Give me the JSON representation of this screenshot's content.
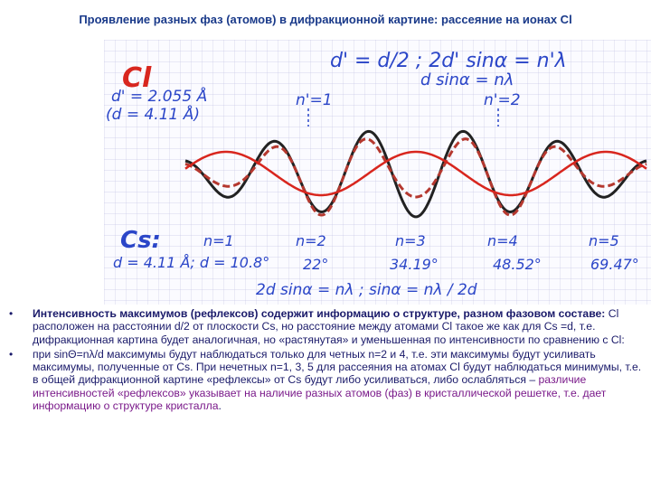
{
  "title": "Проявление разных фаз (атомов) в дифракционной картине: рассеяние на ионах Cl",
  "figure": {
    "formula_top1": "d' = d/2 ; 2d' sinα = n'λ",
    "formula_top2": "d sinα = nλ",
    "cl_symbol": "Cl",
    "cl_d_prime": "d' = 2.055 Å",
    "cl_d": "(d = 4.11 Å)",
    "n1_top": "n'=1",
    "n2_top": "n'=2",
    "cs_symbol": "Cs:",
    "cs_params": "d = 4.11 Å; d = 10.8°",
    "n_labels": [
      "n=1",
      "n=2",
      "n=3",
      "n=4",
      "n=5"
    ],
    "angles": [
      "22°",
      "34.19°",
      "48.52°",
      "69.47°"
    ],
    "formula_bottom": "2d sinα = nλ ; sinα = nλ / 2d",
    "colors": {
      "grid": "#c9c9e6",
      "black_wave": "#222222",
      "red_wave": "#d8261e",
      "dashed_wave": "#b5382f",
      "pen": "#2b46c8",
      "red_pen": "#d8261e"
    }
  },
  "bullets": [
    {
      "bold": "Интенсивность максимумов (рефлексов) содержит информацию о структуре, разном фазовом составе:",
      "text": " Cl расположен на расстоянии d/2 от плоскости Cs, но расстояние между атомами Cl такое же как для Cs =d, т.е. дифракционная картина будет аналогичная, но «растянутая» и уменьшенная по интенсивности по сравнению с Cl:"
    },
    {
      "text": "при sinΘ=nλ/d максимумы будут наблюдаться только для четных n=2 и 4, т.е. эти максимумы будут усиливать максимумы, полученные от Cs. При нечетных n=1, 3, 5 для рассеяния на атомах Cl будут наблюдаться минимумы, т.е. в общей дифракционной картине «рефлексы» от Cs будут либо усиливаться, либо ослабляться – ",
      "highlight": "различие интенсивностей «рефлексов» указывает на наличие разных атомов (фаз) в кристаллической решетке, т.е. дает информацию о структуре кристалла",
      "end": "."
    }
  ]
}
